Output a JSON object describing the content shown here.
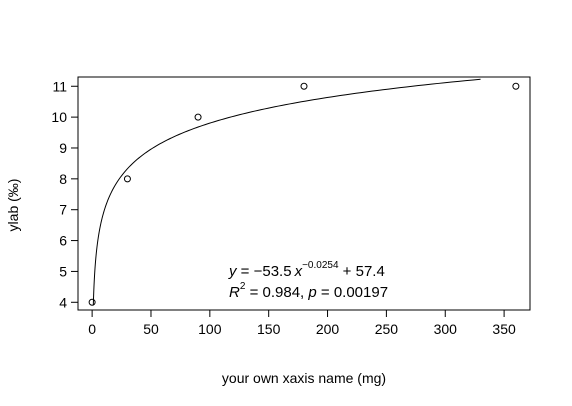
{
  "chart_data": {
    "type": "scatter",
    "xlabel": "your own xaxis name (mg)",
    "ylabel": "ylab (‰)",
    "xlim": [
      -12,
      372
    ],
    "ylim": [
      3.75,
      11.3
    ],
    "x_ticks": [
      0,
      50,
      100,
      150,
      200,
      250,
      300,
      350
    ],
    "y_ticks": [
      4,
      5,
      6,
      7,
      8,
      9,
      10,
      11
    ],
    "grid": false,
    "points": [
      {
        "x": 0,
        "y": 4
      },
      {
        "x": 30,
        "y": 8
      },
      {
        "x": 90,
        "y": 10
      },
      {
        "x": 180,
        "y": 11
      },
      {
        "x": 360,
        "y": 11
      }
    ],
    "fit": {
      "model": "power",
      "a": -53.5,
      "b": -0.0254,
      "c": 57.4,
      "x_range": [
        1,
        330
      ]
    },
    "annotation": {
      "line1": {
        "y_var": "y",
        "eq": " = ",
        "coef": "−53.5",
        "x_var": "x",
        "exp": "−0.0254",
        "const": " + 57.4"
      },
      "line2": {
        "r_var": "R",
        "r_exp": "2",
        "r_val": " = 0.984,  ",
        "p_var": "p",
        "p_val": " = 0.00197"
      }
    }
  }
}
